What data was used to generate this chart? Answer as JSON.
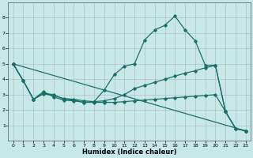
{
  "xlabel": "Humidex (Indice chaleur)",
  "bg_color": "#c8e8e8",
  "line_color": "#1a7068",
  "xlim": [
    -0.5,
    23.5
  ],
  "ylim": [
    0,
    9
  ],
  "yticks": [
    1,
    2,
    3,
    4,
    5,
    6,
    7,
    8
  ],
  "xticks": [
    0,
    1,
    2,
    3,
    4,
    5,
    6,
    7,
    8,
    9,
    10,
    11,
    12,
    13,
    14,
    15,
    16,
    17,
    18,
    19,
    20,
    21,
    22,
    23
  ],
  "line1_x": [
    0,
    1,
    2,
    3,
    4,
    5,
    6,
    7,
    8,
    9,
    10,
    11,
    12,
    13,
    14,
    15,
    16,
    17,
    18,
    19,
    20,
    21,
    22,
    23
  ],
  "line1_y": [
    5.0,
    3.9,
    2.7,
    3.2,
    2.85,
    2.65,
    2.6,
    2.5,
    2.55,
    3.3,
    4.3,
    4.85,
    5.0,
    6.55,
    7.2,
    7.5,
    8.1,
    7.2,
    6.5,
    4.9,
    4.9,
    1.9,
    0.8,
    0.65
  ],
  "line2_x": [
    0,
    1,
    2,
    3,
    4,
    5,
    6,
    7,
    8,
    9,
    10,
    11,
    12,
    13,
    14,
    15,
    16,
    17,
    18,
    19,
    20,
    21,
    22,
    23
  ],
  "line2_y": [
    5.0,
    3.9,
    2.7,
    3.05,
    2.95,
    2.75,
    2.7,
    2.6,
    2.55,
    2.6,
    2.75,
    3.0,
    3.4,
    3.6,
    3.8,
    4.0,
    4.2,
    4.4,
    4.55,
    4.75,
    4.9,
    1.9,
    0.8,
    0.65
  ],
  "line3_x": [
    0,
    1,
    2,
    3,
    4,
    5,
    6,
    7,
    8,
    9,
    10,
    11,
    12,
    13,
    14,
    15,
    16,
    17,
    18,
    19,
    20,
    21,
    22,
    23
  ],
  "line3_y": [
    5.0,
    3.9,
    2.7,
    3.1,
    3.0,
    2.7,
    2.65,
    2.5,
    2.5,
    2.5,
    2.5,
    2.55,
    2.6,
    2.65,
    2.7,
    2.75,
    2.8,
    2.85,
    2.9,
    2.95,
    3.0,
    1.9,
    0.8,
    0.65
  ],
  "line4_x": [
    0,
    23
  ],
  "line4_y": [
    5.0,
    0.65
  ]
}
